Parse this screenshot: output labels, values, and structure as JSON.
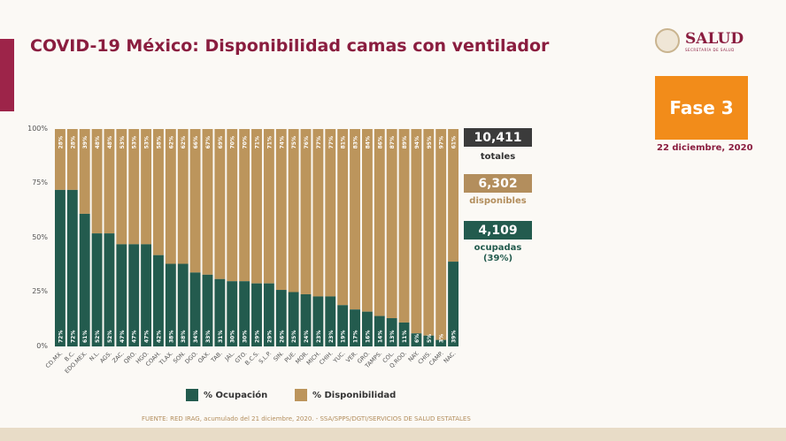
{
  "title": "COVID-19 México: Disponibilidad camas con ventilador",
  "logo": {
    "name": "SALUD",
    "subtitle": "SECRETARÍA DE SALUD"
  },
  "phase": "Fase 3",
  "date": "22 diciembre, 2020",
  "stats": {
    "total": "10,411",
    "total_label": "totales",
    "available": "6,302",
    "available_label": "disponibles",
    "occupied": "4,109",
    "occupied_label": "ocupadas",
    "occupied_pct": "(39%)"
  },
  "source": "FUENTE: RED IRAG, acumulado del 21 diciembre, 2020. -  SSA/SPPS/DGTI/SERVICIOS DE SALUD ESTATALES",
  "colors": {
    "occupied": "#235b4e",
    "available": "#bc955c"
  },
  "chart_data": {
    "type": "bar",
    "stacked": true,
    "ylim": [
      0,
      100
    ],
    "yticks": [
      "0%",
      "25%",
      "50%",
      "75%",
      "100%"
    ],
    "categories": [
      "CD.MX.",
      "B.C.",
      "EDO.MEX.",
      "N.L.",
      "AGS.",
      "ZAC.",
      "QRO.",
      "HGO.",
      "COAH.",
      "TLAX.",
      "SON.",
      "DGO.",
      "OAX.",
      "TAB.",
      "JAL.",
      "GTO.",
      "B.C.S.",
      "S.L.P.",
      "SIN.",
      "PUE.",
      "MOR.",
      "MICH.",
      "CHIH.",
      "YUC.",
      "VER.",
      "GRO.",
      "TAMPS.",
      "COL.",
      "Q.ROO.",
      "NAY.",
      "CHIS.",
      "CAMP.",
      "NAC."
    ],
    "series": [
      {
        "name": "% Ocupación",
        "values": [
          72,
          72,
          61,
          52,
          52,
          47,
          47,
          47,
          42,
          38,
          38,
          34,
          33,
          31,
          30,
          30,
          29,
          29,
          26,
          25,
          24,
          23,
          23,
          19,
          17,
          16,
          14,
          13,
          11,
          6,
          5,
          3,
          39
        ]
      },
      {
        "name": "% Disponibilidad",
        "values": [
          28,
          28,
          39,
          48,
          48,
          53,
          53,
          53,
          58,
          62,
          62,
          66,
          67,
          69,
          70,
          70,
          71,
          71,
          74,
          75,
          76,
          77,
          77,
          81,
          83,
          84,
          86,
          87,
          89,
          94,
          95,
          97,
          61
        ]
      }
    ],
    "legend": "bottom"
  }
}
